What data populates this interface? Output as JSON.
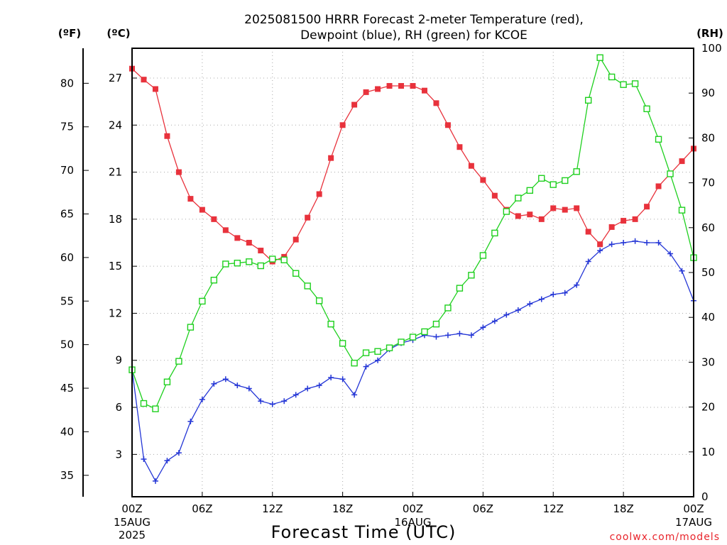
{
  "chart_data": {
    "type": "line",
    "title": "2025081500 HRRR Forecast 2-meter Temperature (red),",
    "subtitle": "Dewpoint (blue), RH (green) for KCOE",
    "xlabel": "Forecast Time (UTC)",
    "credit": "coolwx.com/models",
    "unit_f": "(ºF)",
    "unit_c": "(ºC)",
    "unit_rh": "(RH)",
    "x_hours": [
      0,
      1,
      2,
      3,
      4,
      5,
      6,
      7,
      8,
      9,
      10,
      11,
      12,
      13,
      14,
      15,
      16,
      17,
      18,
      19,
      20,
      21,
      22,
      23,
      24,
      25,
      26,
      27,
      28,
      29,
      30,
      31,
      32,
      33,
      34,
      35,
      36,
      37,
      38,
      39,
      40,
      41,
      42,
      43,
      44,
      45,
      46,
      47,
      48
    ],
    "xlim": [
      0,
      48
    ],
    "x_ticks": [
      {
        "hour": 0,
        "label": "00Z",
        "label2": "15AUG",
        "label3": "2025"
      },
      {
        "hour": 6,
        "label": "06Z"
      },
      {
        "hour": 12,
        "label": "12Z"
      },
      {
        "hour": 18,
        "label": "18Z"
      },
      {
        "hour": 24,
        "label": "00Z",
        "label2": "16AUG"
      },
      {
        "hour": 30,
        "label": "06Z"
      },
      {
        "hour": 36,
        "label": "12Z"
      },
      {
        "hour": 42,
        "label": "18Z"
      },
      {
        "hour": 48,
        "label": "00Z",
        "label2": "17AUG"
      }
    ],
    "ylim_c": [
      0.3,
      28.9
    ],
    "y_ticks_c": [
      "3",
      "6",
      "9",
      "12",
      "15",
      "18",
      "21",
      "24",
      "27"
    ],
    "y_ticks_f": [
      "35",
      "40",
      "45",
      "50",
      "55",
      "60",
      "65",
      "70",
      "75",
      "80"
    ],
    "ylim_rh": [
      0,
      100
    ],
    "y_ticks_rh": [
      "0",
      "10",
      "20",
      "30",
      "40",
      "50",
      "60",
      "70",
      "80",
      "90",
      "100"
    ],
    "grid": true,
    "series": [
      {
        "key": "temperature",
        "color": "#e8323c",
        "marker": "filled-square",
        "axis": "C",
        "values": [
          27.6,
          26.9,
          26.3,
          23.3,
          21.0,
          19.3,
          18.6,
          18.0,
          17.3,
          16.8,
          16.5,
          16.0,
          15.3,
          15.6,
          16.7,
          18.1,
          19.6,
          21.9,
          24.0,
          25.3,
          26.1,
          26.3,
          26.5,
          26.5,
          26.5,
          26.2,
          25.4,
          24.0,
          22.6,
          21.4,
          20.5,
          19.5,
          18.6,
          18.2,
          18.3,
          18.0,
          18.7,
          18.6,
          18.7,
          17.2,
          16.4,
          17.5,
          17.9,
          18.0,
          18.8,
          20.1,
          20.9,
          21.7,
          22.5
        ]
      },
      {
        "key": "dewpoint",
        "color": "#2436d6",
        "marker": "plus",
        "axis": "C",
        "values": [
          8.4,
          2.7,
          1.3,
          2.6,
          3.1,
          5.1,
          6.5,
          7.5,
          7.8,
          7.4,
          7.2,
          6.4,
          6.2,
          6.4,
          6.8,
          7.2,
          7.4,
          7.9,
          7.8,
          6.8,
          8.6,
          9.0,
          9.7,
          10.1,
          10.3,
          10.6,
          10.5,
          10.6,
          10.7,
          10.6,
          11.1,
          11.5,
          11.9,
          12.2,
          12.6,
          12.9,
          13.2,
          13.3,
          13.8,
          15.3,
          16.0,
          16.4,
          16.5,
          16.6,
          16.5,
          16.5,
          15.8,
          14.7,
          12.8
        ]
      },
      {
        "key": "rh",
        "color": "#1ed01e",
        "marker": "open-square",
        "axis": "RH",
        "values": [
          28.3,
          20.8,
          19.6,
          25.6,
          30.2,
          37.8,
          43.6,
          48.3,
          51.9,
          52.1,
          52.4,
          51.5,
          53.0,
          52.8,
          49.8,
          47.0,
          43.7,
          38.5,
          34.2,
          29.8,
          32.1,
          32.4,
          33.2,
          34.5,
          35.6,
          36.8,
          38.5,
          42.1,
          46.5,
          49.4,
          53.8,
          58.8,
          63.6,
          66.6,
          68.3,
          71.0,
          69.6,
          70.5,
          72.5,
          88.4,
          97.9,
          93.6,
          91.9,
          92.1,
          86.5,
          79.7,
          72.0,
          63.9,
          53.3
        ]
      }
    ]
  }
}
